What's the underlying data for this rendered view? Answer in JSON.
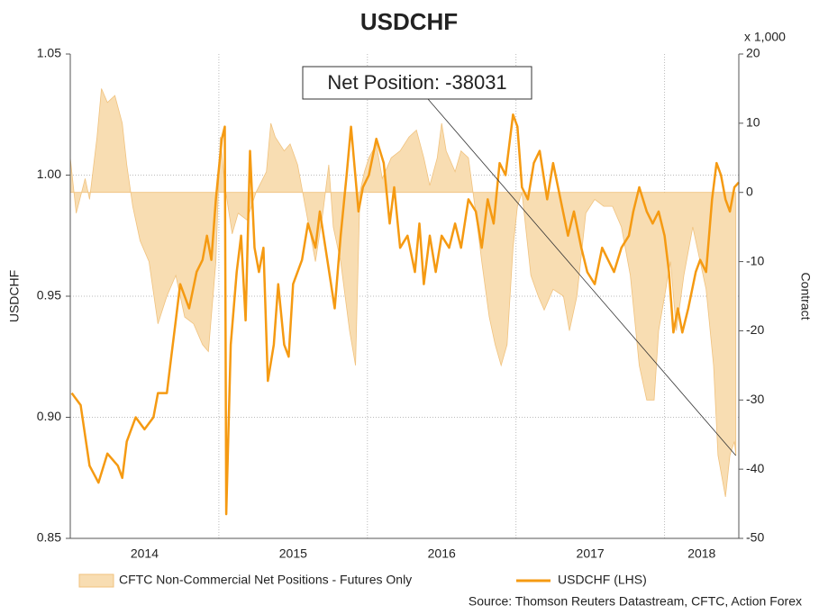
{
  "chart_data": {
    "type": "line",
    "title": "USDCHF",
    "y_label": "USDCHF",
    "y2_label": "Contract",
    "y2_unit": "x 1,000",
    "source": "Source: Thomson Reuters Datastream, CFTC, Action Forex",
    "annotations": [
      {
        "text": "Net Position: -38031"
      }
    ],
    "xlim": [
      2014,
      2018.5
    ],
    "xticks": [
      {
        "value": 2014.5,
        "label": "2014"
      },
      {
        "value": 2015.5,
        "label": "2015"
      },
      {
        "value": 2016.5,
        "label": "2016"
      },
      {
        "value": 2017.5,
        "label": "2017"
      },
      {
        "value": 2018.25,
        "label": "2018"
      }
    ],
    "xgrid": [
      2015,
      2016,
      2017,
      2018
    ],
    "ylim": [
      0.85,
      1.05
    ],
    "yticks": [
      0.85,
      {
        "value": 0.9,
        "label": "0.90"
      },
      0.95,
      {
        "value": 1,
        "label": "1.00"
      },
      1.05
    ],
    "y2lim": [
      -50,
      20
    ],
    "y2ticks": [
      -50,
      -40,
      -30,
      -20,
      -10,
      0,
      10,
      20
    ],
    "grid": true,
    "legend": "bottom",
    "series": [
      {
        "name": "CFTC Non-Commercial Net Positions - Futures Only",
        "kind": "area",
        "axis": "y2",
        "color": "#f8ddb2",
        "stroke": "#f0c27e",
        "x": [
          2014.0,
          2014.04,
          2014.1,
          2014.13,
          2014.18,
          2014.21,
          2014.25,
          2014.3,
          2014.35,
          2014.38,
          2014.42,
          2014.47,
          2014.53,
          2014.59,
          2014.65,
          2014.71,
          2014.77,
          2014.83,
          2014.89,
          2014.93,
          2014.98,
          2015.01,
          2015.04,
          2015.09,
          2015.13,
          2015.19,
          2015.25,
          2015.32,
          2015.35,
          2015.38,
          2015.44,
          2015.48,
          2015.53,
          2015.59,
          2015.65,
          2015.7,
          2015.74,
          2015.77,
          2015.82,
          2015.88,
          2015.92,
          2015.95,
          2015.98,
          2016.01,
          2016.06,
          2016.1,
          2016.16,
          2016.22,
          2016.28,
          2016.33,
          2016.38,
          2016.42,
          2016.47,
          2016.5,
          2016.53,
          2016.59,
          2016.63,
          2016.68,
          2016.73,
          2016.77,
          2016.82,
          2016.86,
          2016.9,
          2016.94,
          2016.98,
          2017.01,
          2017.04,
          2017.1,
          2017.15,
          2017.19,
          2017.25,
          2017.32,
          2017.36,
          2017.41,
          2017.47,
          2017.53,
          2017.59,
          2017.65,
          2017.71,
          2017.77,
          2017.83,
          2017.88,
          2017.93,
          2017.96,
          2018.0,
          2018.04,
          2018.08,
          2018.13,
          2018.19,
          2018.24,
          2018.28,
          2018.33,
          2018.36,
          2018.41,
          2018.44,
          2018.47,
          2018.48
        ],
        "values": [
          5,
          -3,
          2,
          -1,
          8,
          15,
          13,
          14,
          10,
          4,
          -2,
          -7,
          -10,
          -19,
          -15,
          -12,
          -18,
          -19,
          -22,
          -23,
          -10,
          8,
          1,
          -6,
          -3,
          -4,
          0,
          3,
          10,
          8,
          6,
          7,
          4,
          -3,
          -10,
          -3,
          4,
          -5,
          -10,
          -20,
          -25,
          0,
          3,
          5,
          7,
          2,
          5,
          6,
          8,
          9,
          5,
          1,
          5,
          10,
          6,
          3,
          6,
          5,
          -3,
          -10,
          -18,
          -22,
          -25,
          -22,
          -8,
          -2,
          0,
          -12,
          -15,
          -17,
          -14,
          -15,
          -20,
          -15,
          -3,
          -1,
          -2,
          -2,
          -5,
          -12,
          -25,
          -30,
          -30,
          -20,
          -15,
          -10,
          -20,
          -12,
          -5,
          -10,
          -14,
          -25,
          -38,
          -44,
          -38,
          -36,
          -38.031
        ]
      },
      {
        "name": "USDCHF (LHS)",
        "kind": "line",
        "axis": "y",
        "color": "#f59a12",
        "x": [
          2014.01,
          2014.07,
          2014.13,
          2014.19,
          2014.25,
          2014.32,
          2014.35,
          2014.38,
          2014.44,
          2014.5,
          2014.56,
          2014.59,
          2014.65,
          2014.68,
          2014.71,
          2014.74,
          2014.8,
          2014.85,
          2014.89,
          2014.92,
          2014.95,
          2014.98,
          2015.02,
          2015.04,
          2015.05,
          2015.08,
          2015.12,
          2015.15,
          2015.18,
          2015.21,
          2015.24,
          2015.27,
          2015.3,
          2015.33,
          2015.37,
          2015.4,
          2015.44,
          2015.47,
          2015.5,
          2015.56,
          2015.6,
          2015.65,
          2015.68,
          2015.73,
          2015.78,
          2015.82,
          2015.86,
          2015.89,
          2015.94,
          2015.97,
          2016.01,
          2016.06,
          2016.11,
          2016.15,
          2016.18,
          2016.22,
          2016.27,
          2016.32,
          2016.35,
          2016.38,
          2016.42,
          2016.46,
          2016.5,
          2016.55,
          2016.59,
          2016.63,
          2016.68,
          2016.73,
          2016.77,
          2016.81,
          2016.85,
          2016.89,
          2016.93,
          2016.98,
          2017.01,
          2017.04,
          2017.08,
          2017.12,
          2017.16,
          2017.21,
          2017.25,
          2017.3,
          2017.35,
          2017.39,
          2017.44,
          2017.48,
          2017.53,
          2017.58,
          2017.62,
          2017.66,
          2017.71,
          2017.76,
          2017.79,
          2017.83,
          2017.88,
          2017.92,
          2017.96,
          2018.0,
          2018.03,
          2018.06,
          2018.09,
          2018.12,
          2018.16,
          2018.21,
          2018.24,
          2018.28,
          2018.32,
          2018.35,
          2018.38,
          2018.41,
          2018.44,
          2018.47,
          2018.5
        ],
        "values": [
          0.91,
          0.905,
          0.88,
          0.873,
          0.885,
          0.88,
          0.875,
          0.89,
          0.9,
          0.895,
          0.9,
          0.91,
          0.91,
          0.925,
          0.94,
          0.955,
          0.945,
          0.96,
          0.965,
          0.975,
          0.965,
          0.99,
          1.015,
          1.02,
          0.86,
          0.93,
          0.96,
          0.975,
          0.94,
          1.01,
          0.97,
          0.96,
          0.97,
          0.915,
          0.93,
          0.955,
          0.93,
          0.925,
          0.955,
          0.965,
          0.98,
          0.97,
          0.985,
          0.965,
          0.945,
          0.975,
          1.0,
          1.02,
          0.985,
          0.995,
          1.0,
          1.015,
          1.005,
          0.98,
          0.995,
          0.97,
          0.975,
          0.96,
          0.98,
          0.955,
          0.975,
          0.96,
          0.975,
          0.97,
          0.98,
          0.97,
          0.99,
          0.985,
          0.97,
          0.99,
          0.98,
          1.005,
          1.0,
          1.025,
          1.02,
          0.995,
          0.99,
          1.005,
          1.01,
          0.99,
          1.005,
          0.99,
          0.975,
          0.985,
          0.97,
          0.96,
          0.955,
          0.97,
          0.965,
          0.96,
          0.97,
          0.975,
          0.985,
          0.995,
          0.985,
          0.98,
          0.985,
          0.975,
          0.96,
          0.935,
          0.945,
          0.935,
          0.945,
          0.96,
          0.965,
          0.96,
          0.99,
          1.005,
          1.0,
          0.99,
          0.985,
          0.995,
          0.997
        ]
      }
    ]
  }
}
